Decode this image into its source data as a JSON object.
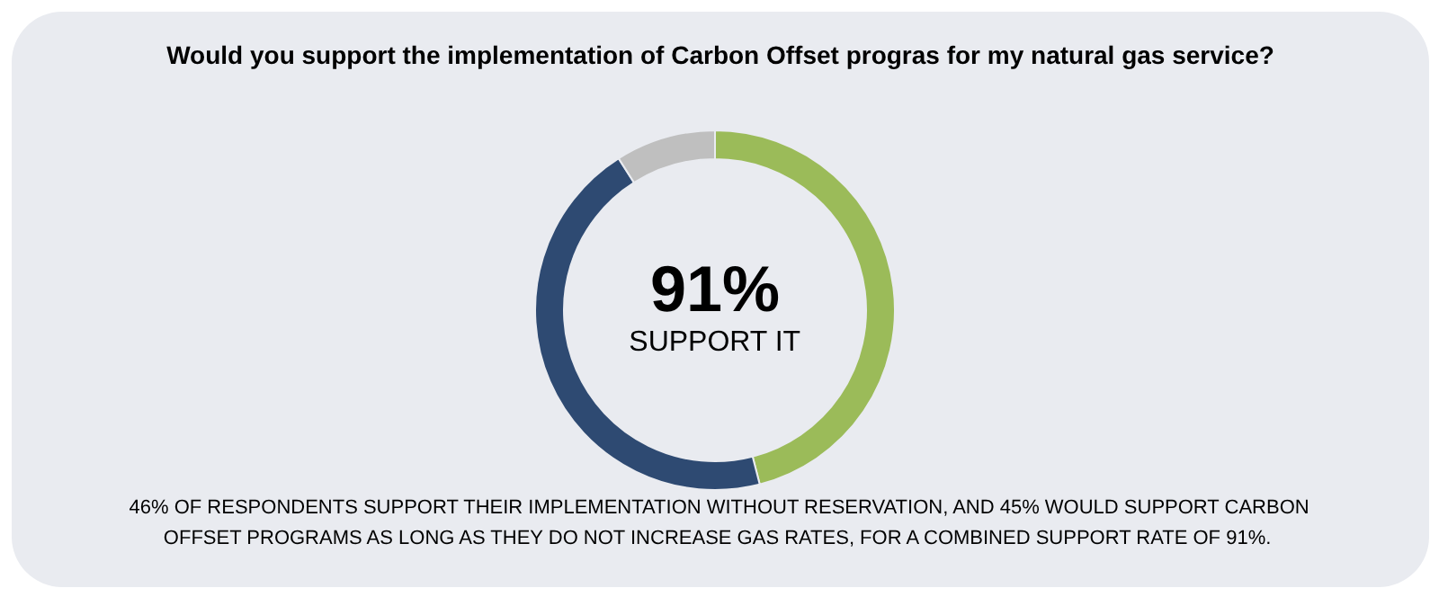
{
  "chart_data": {
    "type": "donut",
    "title": "Would you support the implementation of Carbon Offset progras for my natural gas service?",
    "categories": [
      null,
      null,
      null
    ],
    "values": [
      46,
      45,
      9
    ],
    "colors": [
      "#9bbb59",
      "#2e4a72",
      "#bfbfbf"
    ],
    "annotations": [
      "91%",
      "SUPPORT IT",
      "46% OF RESPONDENTS SUPPORT THEIR IMPLEMENTATION WITHOUT RESERVATION, AND 45% WOULD SUPPORT CARBON OFFSET PROGRAMS AS LONG AS THEY DO NOT INCREASE GAS RATES, FOR A COMBINED SUPPORT RATE OF 91%."
    ]
  }
}
